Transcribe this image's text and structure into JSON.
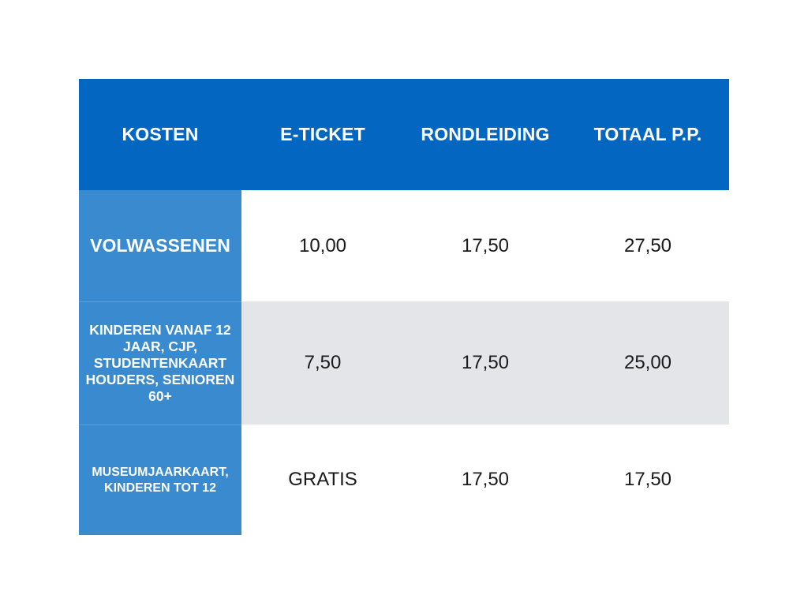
{
  "table": {
    "headers": [
      "KOSTEN",
      "E-TICKET",
      "RONDLEIDING",
      "TOTAAL P.P."
    ],
    "rows": [
      {
        "label": "VOLWASSENEN",
        "e_ticket": "10,00",
        "rondleiding": "17,50",
        "totaal": "27,50"
      },
      {
        "label": "KINDEREN VANAF 12 JAAR, CJP, STUDENTENKAART HOUDERS, SENIOREN 60+",
        "e_ticket": "7,50",
        "rondleiding": "17,50",
        "totaal": "25,00"
      },
      {
        "label": "MUSEUMJAARKAART, KINDEREN TOT 12",
        "e_ticket": "GRATIS",
        "rondleiding": "17,50",
        "totaal": "17,50"
      }
    ]
  },
  "colors": {
    "header_bg": "#0366c1",
    "label_bg": "#3a8ad0",
    "alt_row_bg": "#e4e5e8"
  }
}
